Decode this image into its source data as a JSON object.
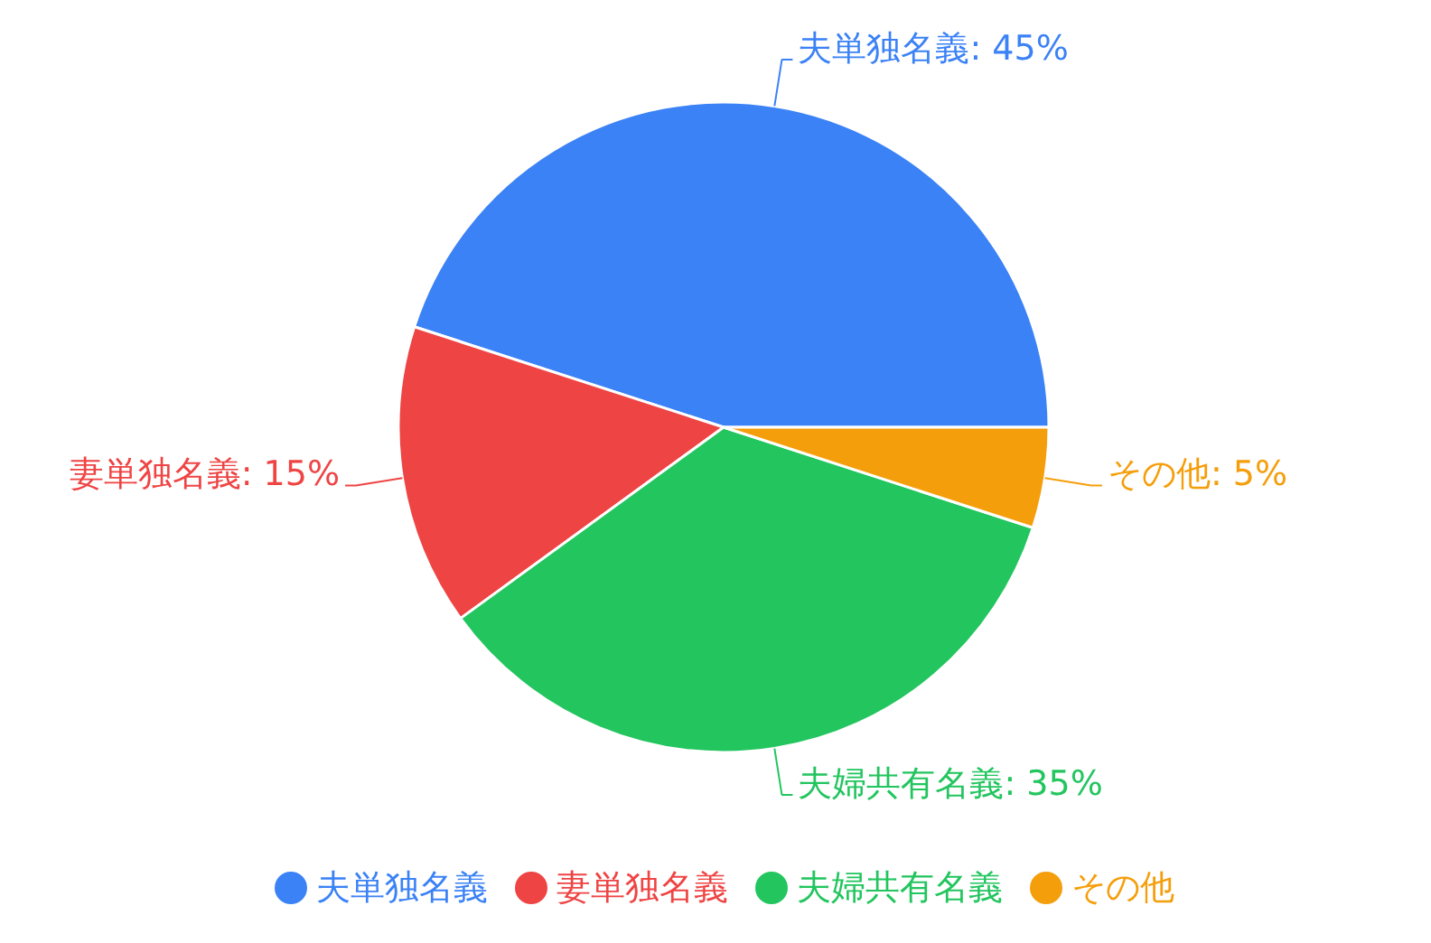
{
  "chart_data": {
    "type": "pie",
    "categories": [
      "夫単独名義",
      "妻単独名義",
      "夫婦共有名義",
      "その他"
    ],
    "values": [
      45,
      15,
      35,
      5
    ],
    "colors": [
      "#3b82f6",
      "#ef4444",
      "#22c55e",
      "#f59e0b"
    ],
    "value_labels": [
      "夫単独名義: 45%",
      "妻単独名義: 15%",
      "夫婦共有名義: 35%",
      "その他: 5%"
    ],
    "legend": "bottom"
  }
}
